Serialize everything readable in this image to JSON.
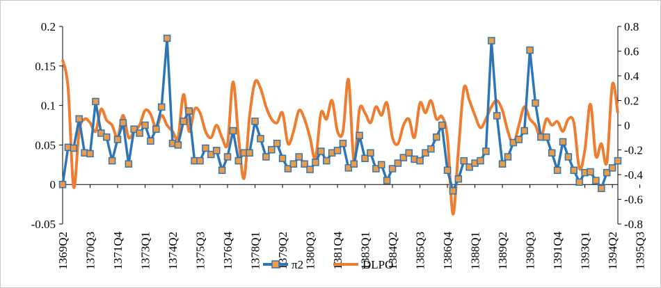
{
  "chart_data": {
    "type": "line",
    "title": "",
    "xlabel": "",
    "ylabel": "",
    "y_left": {
      "min": -0.05,
      "max": 0.2,
      "ticks": [
        "-0.05",
        "0",
        "0.05",
        "0.1",
        "0.15",
        "0.2"
      ],
      "tick_values": [
        -0.05,
        0,
        0.05,
        0.1,
        0.15,
        0.2
      ]
    },
    "y_right": {
      "min": -0.8,
      "max": 0.8,
      "ticks": [
        "-0.8",
        "-0.6",
        "-0.4",
        "-0.2",
        "0",
        "0.2",
        "0.4",
        "0.6",
        "0.8"
      ],
      "tick_values": [
        -0.8,
        -0.6,
        -0.4,
        -0.2,
        0,
        0.2,
        0.4,
        0.6,
        0.8
      ]
    },
    "x_tick_labels": [
      "1369Q2",
      "1370Q3",
      "1371Q4",
      "1373Q1",
      "1374Q2",
      "1375Q3",
      "1376Q4",
      "1378Q1",
      "1379Q2",
      "1380Q3",
      "1381Q4",
      "1383Q1",
      "1384Q2",
      "1385Q3",
      "1386Q4",
      "1388Q1",
      "1389Q2",
      "1390Q3",
      "1391Q4",
      "1393Q1",
      "1394Q2",
      "1395Q3"
    ],
    "grid": false,
    "legend_position": "bottom",
    "series": [
      {
        "name": "π2",
        "axis": "left",
        "color": "#2e75b6",
        "marker": "square",
        "values": [
          0.0,
          0.047,
          0.046,
          0.083,
          0.04,
          0.039,
          0.105,
          0.065,
          0.06,
          0.03,
          0.057,
          0.078,
          0.026,
          0.07,
          0.065,
          0.075,
          0.055,
          0.07,
          0.098,
          0.185,
          0.052,
          0.05,
          0.08,
          0.093,
          0.03,
          0.03,
          0.046,
          0.038,
          0.043,
          0.018,
          0.035,
          0.068,
          0.03,
          0.04,
          0.04,
          0.08,
          0.058,
          0.035,
          0.044,
          0.052,
          0.033,
          0.02,
          0.026,
          0.035,
          0.026,
          0.019,
          0.028,
          0.042,
          0.03,
          0.04,
          0.043,
          0.052,
          0.021,
          0.026,
          0.062,
          0.033,
          0.04,
          0.02,
          0.025,
          0.005,
          0.02,
          0.027,
          0.034,
          0.04,
          0.032,
          0.03,
          0.04,
          0.045,
          0.06,
          0.075,
          0.018,
          -0.008,
          0.007,
          0.03,
          0.022,
          0.027,
          0.03,
          0.042,
          0.182,
          0.087,
          0.026,
          0.035,
          0.053,
          0.057,
          0.068,
          0.17,
          0.103,
          0.06,
          0.06,
          0.04,
          0.018,
          0.054,
          0.035,
          0.018,
          0.003,
          0.015,
          0.016,
          0.005,
          -0.005,
          0.015,
          0.021,
          0.03
        ]
      },
      {
        "name": "DLPO",
        "axis": "right",
        "color": "#ed7d31",
        "values": [
          0.53,
          0.3,
          -0.5,
          -0.05,
          0.05,
          0.02,
          -0.05,
          0.13,
          0.04,
          0.0,
          -0.1,
          0.08,
          -0.1,
          -0.05,
          0.0,
          0.12,
          0.09,
          -0.02,
          0.08,
          0.0,
          -0.05,
          -0.1,
          0.25,
          -0.05,
          0.13,
          0.1,
          -0.05,
          -0.1,
          0.0,
          -0.1,
          -0.15,
          0.35,
          -0.1,
          -0.43,
          0.07,
          0.35,
          0.3,
          0.15,
          0.05,
          0.02,
          0.1,
          -0.15,
          -0.05,
          0.12,
          0.05,
          -0.1,
          -0.27,
          0.1,
          0.05,
          0.2,
          -0.05,
          -0.05,
          0.37,
          -0.3,
          0.13,
          0.1,
          0.02,
          0.15,
          0.08,
          0.18,
          -0.1,
          -0.15,
          0.0,
          0.05,
          -0.1,
          0.18,
          0.1,
          0.2,
          0.05,
          0.07,
          -0.1,
          -0.72,
          -0.2,
          0.3,
          0.2,
          0.08,
          -0.02,
          0.05,
          0.15,
          0.2,
          0.12,
          -0.05,
          -0.15,
          0.0,
          0.15,
          0.05,
          0.0,
          -0.1,
          0.05,
          0.0,
          0.03,
          -0.05,
          0.05,
          0.02,
          -0.35,
          -0.2,
          0.17,
          -0.25,
          -0.15,
          -0.3,
          0.33,
          0.1
        ]
      }
    ]
  },
  "legend": {
    "series1_label": "π2",
    "series2_label": "DLPO"
  }
}
